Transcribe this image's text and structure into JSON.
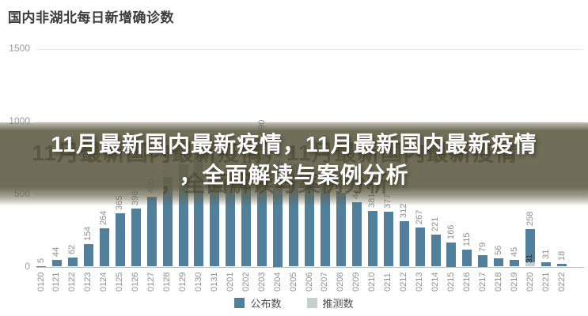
{
  "title": "国内非湖北每日新增确诊数",
  "banner": {
    "line1": "11月最新国内最新疫情，11月最新国内最新疫情",
    "line2": "，全面解读与案例分析",
    "bg_color": "#64614A",
    "text_color": "#ffffff",
    "ghost_color": "#47452F"
  },
  "legend": {
    "items": [
      {
        "label": "公布数",
        "color": "#50809C"
      },
      {
        "label": "推测数",
        "color": "#C9CDCF"
      }
    ]
  },
  "chart_data": {
    "type": "bar",
    "title": "国内非湖北每日新增确诊数",
    "categories": [
      "0120",
      "0121",
      "0122",
      "0123",
      "0124",
      "0125",
      "0126",
      "0127",
      "0128",
      "0129",
      "0130",
      "0131",
      "0201",
      "0202",
      "0203",
      "0204",
      "0205",
      "0206",
      "0207",
      "0208",
      "0209",
      "0210",
      "0211",
      "0212",
      "0213",
      "0214",
      "0215",
      "0216",
      "0217",
      "0218",
      "0219",
      "0220",
      "0221",
      "0222"
    ],
    "values": [
      5,
      44,
      62,
      154,
      264,
      365,
      398,
      480,
      619,
      705,
      762,
      755,
      669,
      726,
      890,
      731,
      707,
      696,
      558,
      509,
      444,
      381,
      377,
      312,
      267,
      221,
      166,
      115,
      79,
      56,
      45,
      258,
      31,
      18
    ],
    "stacked_bar": {
      "category": "0220",
      "total": 258,
      "announced_segment": 227,
      "estimated_segment": 31,
      "on_bar_label": "31"
    },
    "ylim": [
      0,
      1500
    ],
    "yticks": [
      0,
      500,
      1000,
      1500
    ],
    "grid": "horizontal",
    "legend_position": "bottom",
    "series_colors": {
      "announced": "#50809C",
      "estimated": "#C9CDCF"
    },
    "value_label_color": "#8F8F8F",
    "tick_label_color": "#8F8F8F",
    "xlabel": "",
    "ylabel": ""
  }
}
